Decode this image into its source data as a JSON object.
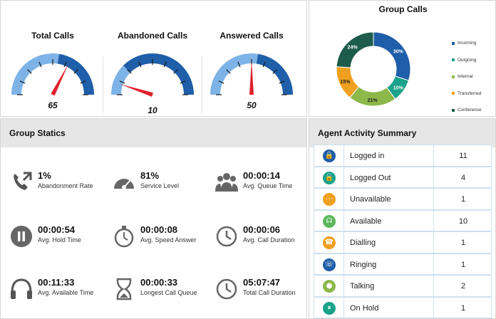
{
  "gauges": [
    {
      "title": "Total Calls",
      "value": "65",
      "level": 0.65
    },
    {
      "title": "Abandoned Calls",
      "value": "10",
      "level": 0.1
    },
    {
      "title": "Answered Calls",
      "value": "50",
      "level": 0.5
    }
  ],
  "group_calls": {
    "title": "Group Calls"
  },
  "chart_data": {
    "type": "pie",
    "title": "Group Calls",
    "categories": [
      "Incoming",
      "Outgoing",
      "Internal",
      "Transferred",
      "Conference"
    ],
    "values": [
      30,
      10,
      21,
      15,
      24
    ],
    "labels": [
      "30%",
      "10%",
      "21%",
      "15%",
      "24%"
    ],
    "colors": [
      "#1f5ea8",
      "#1aa38a",
      "#8db84a",
      "#f0a020",
      "#1d5c4a"
    ],
    "legend": "right"
  },
  "statics": {
    "title": "Group Statics",
    "items": [
      {
        "value": "1%",
        "label": "Abandonment Rate",
        "icon": "phone-outgoing-icon"
      },
      {
        "value": "81%",
        "label": "Service Level",
        "icon": "speedometer-icon"
      },
      {
        "value": "00:00:14",
        "label": "Avg. Queue Time",
        "icon": "group-icon"
      },
      {
        "value": "00:00:54",
        "label": "Avg. Hold Time",
        "icon": "pause-icon"
      },
      {
        "value": "00:00:08",
        "label": "Avg. Speed Answer",
        "icon": "stopwatch-icon"
      },
      {
        "value": "00:00:06",
        "label": "Avg. Call Duration",
        "icon": "clock-icon"
      },
      {
        "value": "00:11:33",
        "label": "Avg. Available Time",
        "icon": "headset-icon"
      },
      {
        "value": "00:00:33",
        "label": "Longest Call Queue",
        "icon": "hourglass-icon"
      },
      {
        "value": "05:07:47",
        "label": "Total Call Duration",
        "icon": "clock-icon"
      }
    ]
  },
  "agent_summary": {
    "title": "Agent Activity Summary",
    "rows": [
      {
        "status": "Logged in",
        "count": "11",
        "icon": "lock-icon",
        "color": "#1f5ea8",
        "glyph": "🔒"
      },
      {
        "status": "Logged Out",
        "count": "4",
        "icon": "unlock-icon",
        "color": "#1aa38a",
        "glyph": "🔓"
      },
      {
        "status": "Unavailable",
        "count": "1",
        "icon": "more-icon",
        "color": "#f0a020",
        "glyph": "⋯"
      },
      {
        "status": "Available",
        "count": "10",
        "icon": "headset-icon",
        "color": "#5cb85c",
        "glyph": "☊"
      },
      {
        "status": "Dialling",
        "count": "1",
        "icon": "dialling-icon",
        "color": "#f0a020",
        "glyph": "☎"
      },
      {
        "status": "Ringing",
        "count": "1",
        "icon": "ringing-icon",
        "color": "#1f5ea8",
        "glyph": "☏"
      },
      {
        "status": "Talking",
        "count": "2",
        "icon": "chat-icon",
        "color": "#8db84a",
        "glyph": "●"
      },
      {
        "status": "On Hold",
        "count": "1",
        "icon": "pause-icon",
        "color": "#1aa38a",
        "glyph": "⏸"
      }
    ]
  }
}
